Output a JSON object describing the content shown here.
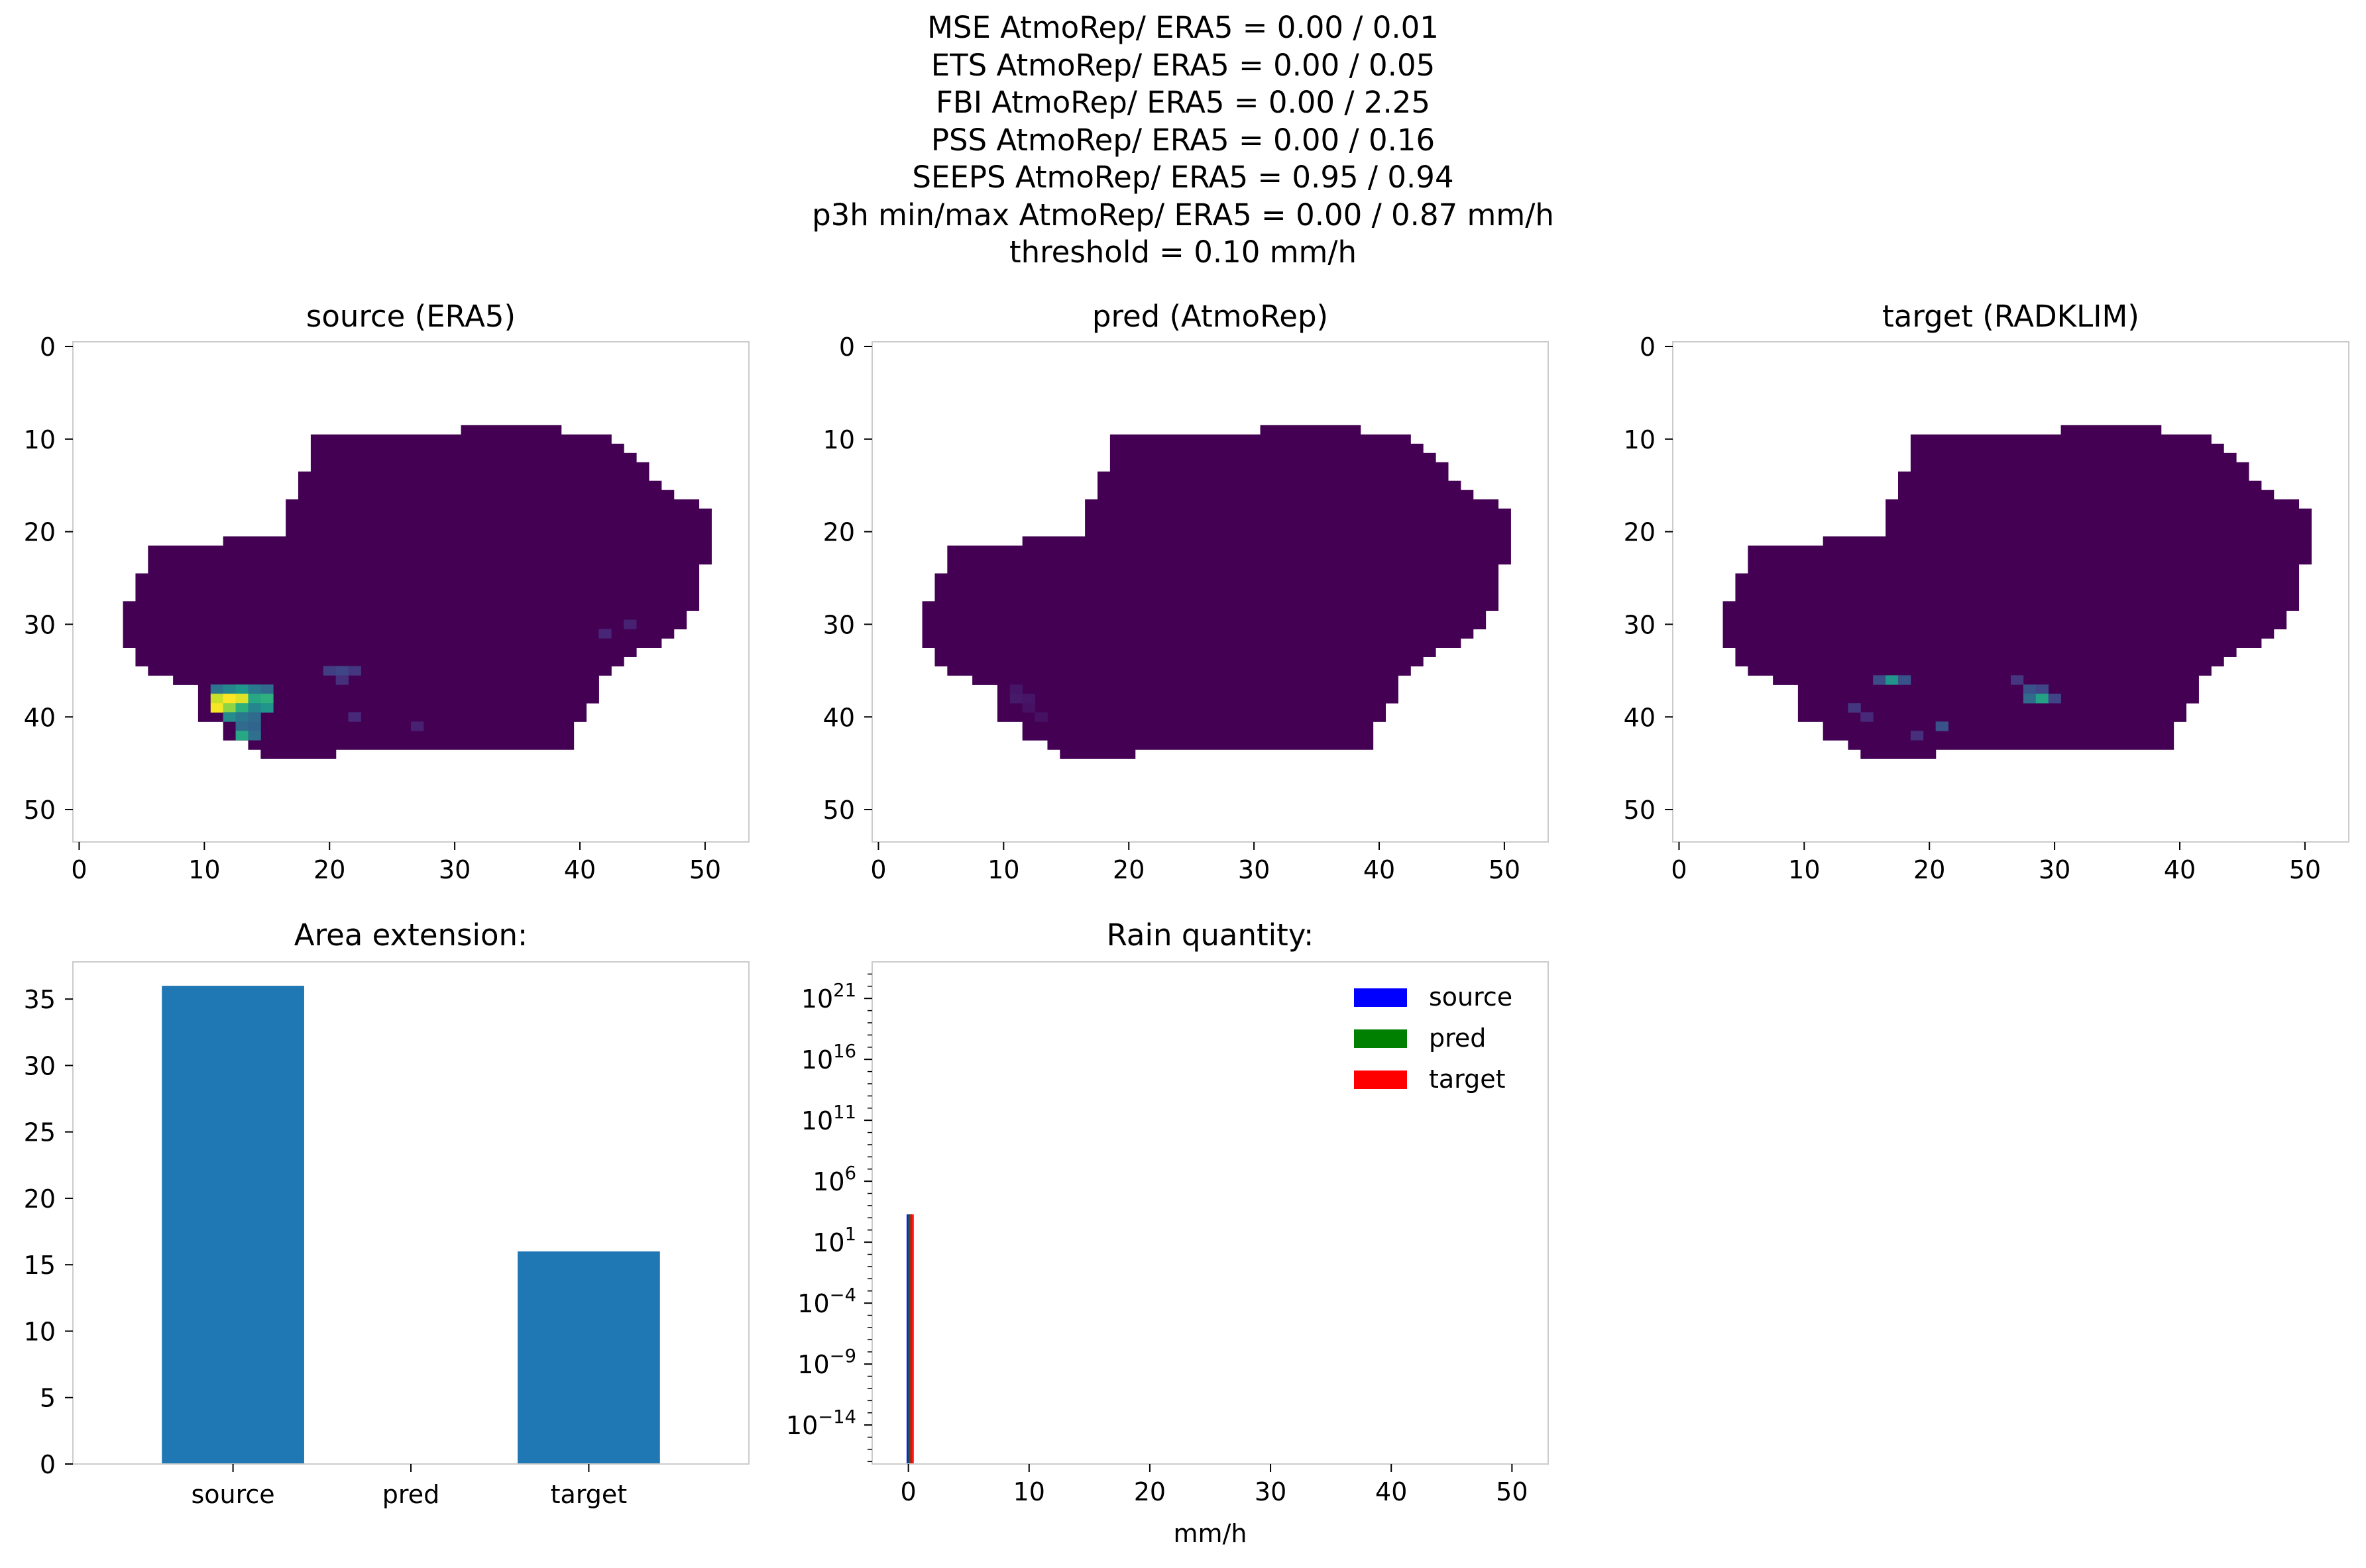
{
  "header": {
    "lines": [
      "MSE AtmoRep/ ERA5 = 0.00 / 0.01",
      "ETS AtmoRep/ ERA5 = 0.00 / 0.05",
      "FBI AtmoRep/ ERA5 = 0.00 / 2.25",
      "PSS AtmoRep/ ERA5 = 0.00 / 0.16",
      "SEEPS AtmoRep/ ERA5 = 0.95 / 0.94",
      "p3h min/max AtmoRep/ ERA5 = 0.00 / 0.87 mm/h",
      "threshold = 0.10 mm/h"
    ]
  },
  "colors": {
    "background_field": "#440154",
    "bar_fill": "#1f77b4",
    "hist_source": "#0000ff",
    "hist_pred": "#008000",
    "hist_target": "#ff0000",
    "axis_frame": "#cccccc"
  },
  "chart_data": [
    {
      "type": "heatmap",
      "title": "source (ERA5)",
      "colormap": "viridis",
      "xlim": [
        -0.5,
        53.5
      ],
      "ylim": [
        53.5,
        -0.5
      ],
      "xticks": [
        0,
        10,
        20,
        30,
        40,
        50
      ],
      "yticks": [
        0,
        10,
        20,
        30,
        40,
        50
      ],
      "mask_rows": [
        [
          9,
          31,
          38
        ],
        [
          10,
          19,
          42
        ],
        [
          11,
          19,
          43
        ],
        [
          12,
          19,
          44
        ],
        [
          13,
          19,
          45
        ],
        [
          14,
          18,
          45
        ],
        [
          15,
          18,
          46
        ],
        [
          16,
          18,
          47
        ],
        [
          17,
          17,
          49
        ],
        [
          18,
          17,
          50
        ],
        [
          19,
          17,
          50
        ],
        [
          20,
          17,
          50
        ],
        [
          21,
          12,
          50
        ],
        [
          22,
          6,
          50
        ],
        [
          23,
          6,
          50
        ],
        [
          24,
          6,
          49
        ],
        [
          25,
          5,
          49
        ],
        [
          26,
          5,
          49
        ],
        [
          27,
          5,
          49
        ],
        [
          28,
          4,
          49
        ],
        [
          29,
          4,
          48
        ],
        [
          30,
          4,
          48
        ],
        [
          31,
          4,
          47
        ],
        [
          32,
          4,
          46
        ],
        [
          33,
          5,
          44
        ],
        [
          34,
          5,
          43
        ],
        [
          35,
          6,
          42
        ],
        [
          36,
          8,
          41
        ],
        [
          37,
          10,
          41
        ],
        [
          38,
          10,
          41
        ],
        [
          39,
          10,
          40
        ],
        [
          40,
          10,
          40
        ],
        [
          41,
          12,
          39
        ],
        [
          42,
          12,
          39
        ],
        [
          43,
          14,
          39
        ],
        [
          44,
          15,
          20
        ]
      ],
      "hotspots": [
        {
          "row": 37,
          "col": 11,
          "v": 0.34
        },
        {
          "row": 37,
          "col": 12,
          "v": 0.4
        },
        {
          "row": 37,
          "col": 13,
          "v": 0.45
        },
        {
          "row": 37,
          "col": 14,
          "v": 0.35
        },
        {
          "row": 37,
          "col": 15,
          "v": 0.3
        },
        {
          "row": 38,
          "col": 11,
          "v": 0.8
        },
        {
          "row": 38,
          "col": 12,
          "v": 0.87
        },
        {
          "row": 38,
          "col": 13,
          "v": 0.83
        },
        {
          "row": 38,
          "col": 14,
          "v": 0.52
        },
        {
          "row": 38,
          "col": 15,
          "v": 0.55
        },
        {
          "row": 39,
          "col": 11,
          "v": 0.86
        },
        {
          "row": 39,
          "col": 12,
          "v": 0.72
        },
        {
          "row": 39,
          "col": 13,
          "v": 0.55
        },
        {
          "row": 39,
          "col": 14,
          "v": 0.4
        },
        {
          "row": 39,
          "col": 15,
          "v": 0.45
        },
        {
          "row": 40,
          "col": 12,
          "v": 0.42
        },
        {
          "row": 40,
          "col": 13,
          "v": 0.35
        },
        {
          "row": 40,
          "col": 14,
          "v": 0.3
        },
        {
          "row": 41,
          "col": 13,
          "v": 0.3
        },
        {
          "row": 41,
          "col": 14,
          "v": 0.28
        },
        {
          "row": 42,
          "col": 13,
          "v": 0.52
        },
        {
          "row": 42,
          "col": 14,
          "v": 0.32
        },
        {
          "row": 35,
          "col": 20,
          "v": 0.16
        },
        {
          "row": 35,
          "col": 21,
          "v": 0.18
        },
        {
          "row": 35,
          "col": 22,
          "v": 0.14
        },
        {
          "row": 36,
          "col": 21,
          "v": 0.12
        },
        {
          "row": 40,
          "col": 22,
          "v": 0.1
        },
        {
          "row": 41,
          "col": 27,
          "v": 0.08
        },
        {
          "row": 31,
          "col": 42,
          "v": 0.09
        },
        {
          "row": 30,
          "col": 44,
          "v": 0.08
        }
      ],
      "colorbar": false
    },
    {
      "type": "heatmap",
      "title": "pred (AtmoRep)",
      "colormap": "viridis",
      "xlim": [
        -0.5,
        53.5
      ],
      "ylim": [
        53.5,
        -0.5
      ],
      "xticks": [
        0,
        10,
        20,
        30,
        40,
        50
      ],
      "yticks": [
        0,
        10,
        20,
        30,
        40,
        50
      ],
      "mask_rows": "same as source",
      "hotspots": [
        {
          "row": 37,
          "col": 11,
          "v": 0.05
        },
        {
          "row": 38,
          "col": 11,
          "v": 0.06
        },
        {
          "row": 38,
          "col": 12,
          "v": 0.05
        },
        {
          "row": 39,
          "col": 12,
          "v": 0.04
        },
        {
          "row": 40,
          "col": 13,
          "v": 0.04
        }
      ],
      "colorbar": false
    },
    {
      "type": "heatmap",
      "title": "target (RADKLIM)",
      "colormap": "viridis",
      "xlim": [
        -0.5,
        53.5
      ],
      "ylim": [
        53.5,
        -0.5
      ],
      "xticks": [
        0,
        10,
        20,
        30,
        40,
        50
      ],
      "yticks": [
        0,
        10,
        20,
        30,
        40,
        50
      ],
      "mask_rows": "same as source",
      "hotspots": [
        {
          "row": 36,
          "col": 16,
          "v": 0.2
        },
        {
          "row": 36,
          "col": 17,
          "v": 0.45
        },
        {
          "row": 36,
          "col": 18,
          "v": 0.22
        },
        {
          "row": 36,
          "col": 27,
          "v": 0.14
        },
        {
          "row": 37,
          "col": 28,
          "v": 0.22
        },
        {
          "row": 37,
          "col": 29,
          "v": 0.18
        },
        {
          "row": 38,
          "col": 28,
          "v": 0.3
        },
        {
          "row": 38,
          "col": 29,
          "v": 0.5
        },
        {
          "row": 38,
          "col": 30,
          "v": 0.18
        },
        {
          "row": 39,
          "col": 14,
          "v": 0.14
        },
        {
          "row": 40,
          "col": 15,
          "v": 0.1
        },
        {
          "row": 41,
          "col": 21,
          "v": 0.22
        },
        {
          "row": 42,
          "col": 19,
          "v": 0.12
        }
      ],
      "colorbar": false
    },
    {
      "type": "bar",
      "title": "Area extension:",
      "categories": [
        "source",
        "pred",
        "target"
      ],
      "values": [
        36,
        0,
        16
      ],
      "ylim": [
        0,
        37.8
      ],
      "yticks": [
        0,
        5,
        10,
        15,
        20,
        25,
        30,
        35
      ]
    },
    {
      "type": "bar",
      "title": "Rain quantity:",
      "xlabel": "mm/h",
      "yscale": "log",
      "ylim_exp": [
        -17.2,
        24
      ],
      "xlim": [
        -3,
        53
      ],
      "xticks": [
        0,
        10,
        20,
        30,
        40,
        50
      ],
      "yticks_exp": [
        -14,
        -9,
        -4,
        1,
        6,
        11,
        16,
        21
      ],
      "series": [
        {
          "name": "source",
          "bin_x": [
            0.0
          ],
          "bin_width": 0.3,
          "counts": [
            1900
          ]
        },
        {
          "name": "pred",
          "bin_x": [
            0.15
          ],
          "bin_width": 0.3,
          "counts": [
            1900
          ]
        },
        {
          "name": "target",
          "bin_x": [
            0.3
          ],
          "bin_width": 0.3,
          "counts": [
            1900
          ]
        }
      ],
      "legend": "top-right"
    }
  ]
}
